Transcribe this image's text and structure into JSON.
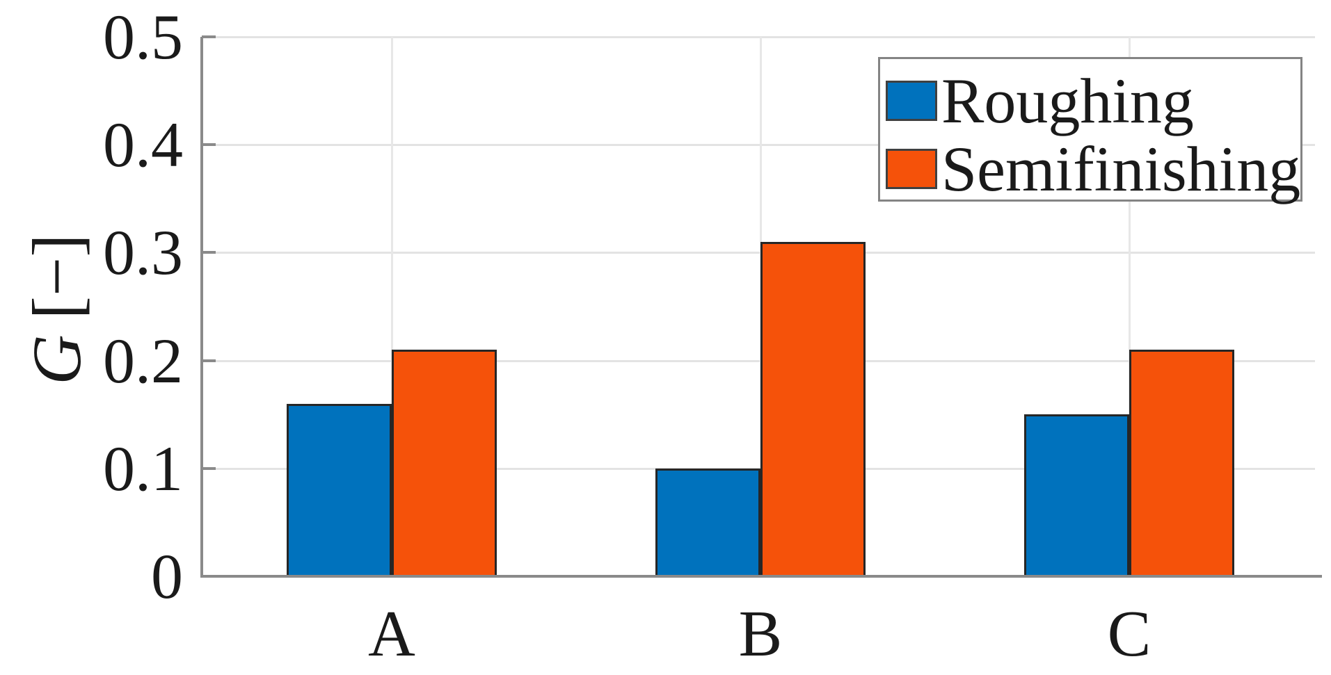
{
  "figure": {
    "background_color": "#ffffff",
    "axis_color": "#8a8a8a",
    "grid_color": "#e3e3e3",
    "bar_edge_color": "#262626",
    "text_color": "#1a1a1a",
    "legend_border_color": "#848484"
  },
  "chart_data": {
    "type": "bar",
    "title": "",
    "xlabel": "",
    "ylabel": "G [−]",
    "ylabel_variable": "G",
    "ylabel_unit": "[−]",
    "categories": [
      "A",
      "B",
      "C"
    ],
    "series": [
      {
        "name": "Roughing",
        "color": "#0072BD",
        "values": [
          0.16,
          0.1,
          0.15
        ]
      },
      {
        "name": "Semifinishing",
        "color": "#F5520A",
        "values": [
          0.21,
          0.31,
          0.21
        ]
      }
    ],
    "ylim": [
      0,
      0.5
    ],
    "yticks": [
      0,
      0.1,
      0.2,
      0.3,
      0.4,
      0.5
    ],
    "ytick_labels": [
      "0",
      "0.1",
      "0.2",
      "0.3",
      "0.4",
      "0.5"
    ],
    "grid": true,
    "grid_horizontal": true,
    "grid_vertical_at_categories": true,
    "legend_position": "top-right"
  }
}
